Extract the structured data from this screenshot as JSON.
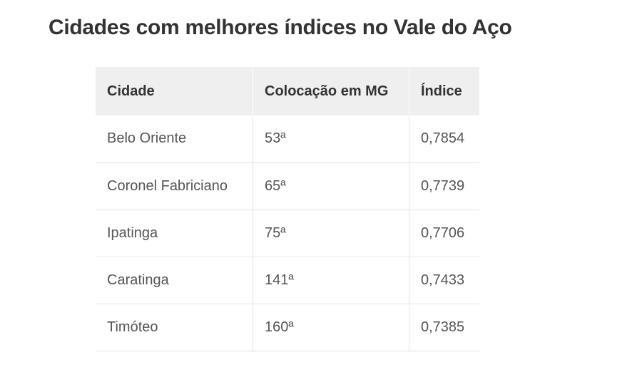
{
  "title": "Cidades com melhores índices no Vale do Aço",
  "table": {
    "headers": [
      "Cidade",
      "Colocação em MG",
      "Índice"
    ],
    "rows": [
      [
        "Belo Oriente",
        "53ª",
        "0,7854"
      ],
      [
        "Coronel Fabriciano",
        "65ª",
        "0,7739"
      ],
      [
        "Ipatinga",
        "75ª",
        "0,7706"
      ],
      [
        "Caratinga",
        "141ª",
        "0,7433"
      ],
      [
        "Timóteo",
        "160ª",
        "0,7385"
      ]
    ]
  }
}
